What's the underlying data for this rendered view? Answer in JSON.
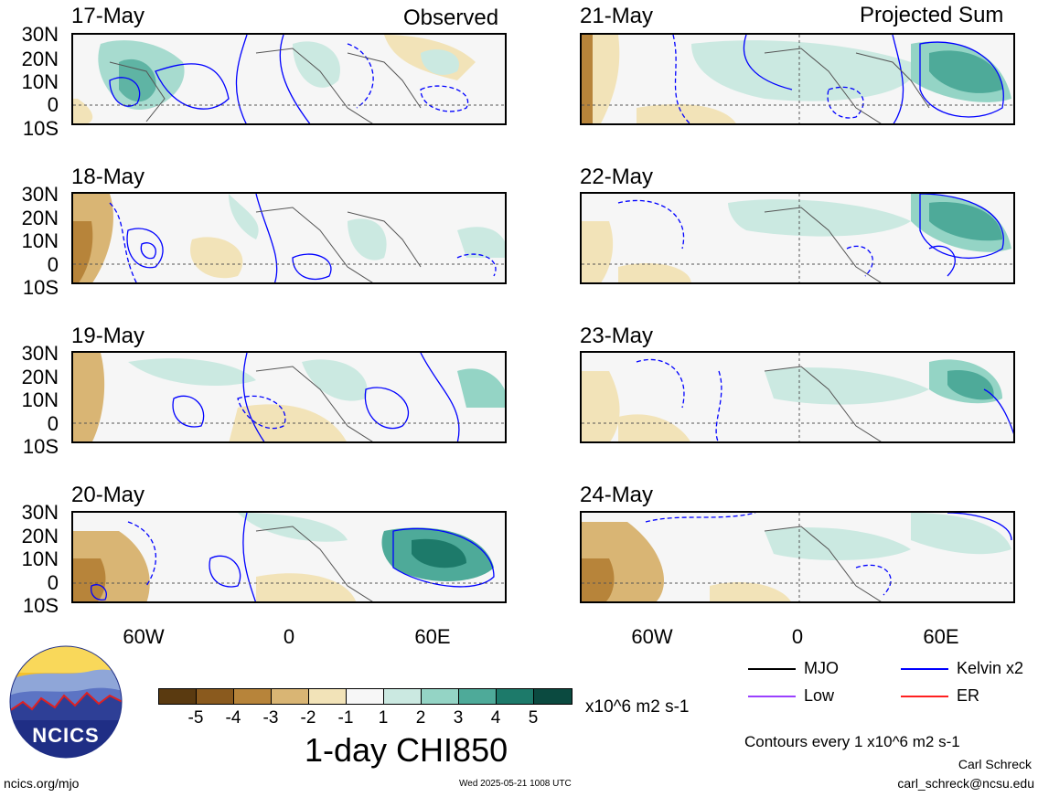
{
  "header": {
    "left_label": "Observed",
    "right_label": "Projected Sum"
  },
  "panels_left": [
    "17-May",
    "18-May",
    "19-May",
    "20-May"
  ],
  "panels_right": [
    "21-May",
    "22-May",
    "23-May",
    "24-May"
  ],
  "lat_labels": [
    "30N",
    "20N",
    "10N",
    "0",
    "10S"
  ],
  "lon_labels": [
    "60W",
    "0",
    "60E"
  ],
  "colorbar": {
    "labels": [
      "-5",
      "-4",
      "-3",
      "-2",
      "-1",
      "1",
      "2",
      "3",
      "4",
      "5"
    ],
    "units": "x10^6 m2 s-1",
    "colors": [
      "#5a3a10",
      "#8a5a1e",
      "#b7843a",
      "#d9b574",
      "#f2e3b8",
      "#f7f7f7",
      "#cbe9e1",
      "#94d4c5",
      "#4eaa99",
      "#1d7a6a",
      "#0b4a40"
    ]
  },
  "title": "1-day CHI850",
  "legend": {
    "items": [
      {
        "label": "MJO",
        "color": "#000000"
      },
      {
        "label": "Kelvin x2",
        "color": "#0000ff"
      },
      {
        "label": "Low",
        "color": "#9a40ff"
      },
      {
        "label": "ER",
        "color": "#ff2020"
      }
    ],
    "contours_note": "Contours every 1 x10^6 m2 s-1"
  },
  "footer": {
    "website": "ncics.org/mjo",
    "timestamp": "Wed 2025-05-21 1008 UTC",
    "author": "Carl Schreck",
    "email": "carl_schreck@ncsu.edu",
    "logo_text": "NCICS"
  }
}
